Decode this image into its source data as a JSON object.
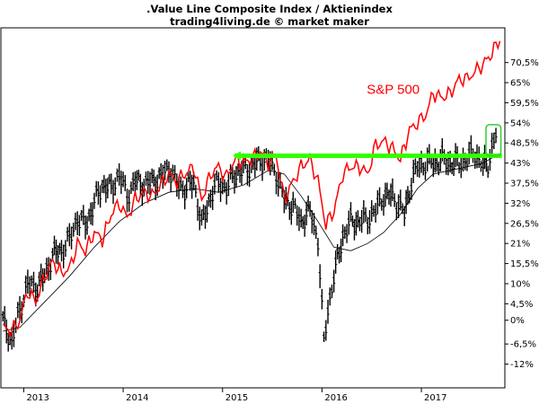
{
  "chart_data": {
    "type": "line",
    "title": ".Value Line Composite Index / Aktienindex",
    "subtitle": "trading4living.de © market maker",
    "annotation": "S&P 500",
    "colors": {
      "price": "#000000",
      "sma": "#000000",
      "sp500": "#ff0000",
      "resistance": "#33ff00",
      "breakout_box": "#33cc33",
      "annotation": "#ff0000"
    },
    "y_axis": {
      "position": "right",
      "tick_labels": [
        "70,5%",
        "65%",
        "59,5%",
        "54%",
        "48,5%",
        "43%",
        "37,5%",
        "32%",
        "26,5%",
        "21%",
        "15,5%",
        "10%",
        "4,5%",
        "0%",
        "-6,5%",
        "-12%"
      ],
      "tick_values": [
        70.5,
        65,
        59.5,
        54,
        48.5,
        43,
        37.5,
        32,
        26.5,
        21,
        15.5,
        10,
        4.5,
        0,
        -6.5,
        -12
      ],
      "ylim": [
        -18.5,
        80
      ]
    },
    "x_axis": {
      "tick_labels": [
        "2013",
        "2014",
        "2015",
        "2016",
        "2017"
      ],
      "tick_values": [
        2013.0,
        2014.0,
        2015.0,
        2016.0,
        2017.0
      ],
      "xlim": [
        2012.77,
        2017.84
      ]
    },
    "grid": false,
    "series": [
      {
        "name": ".Value Line Composite Index",
        "style": "bar",
        "points": [
          [
            2012.79,
            0
          ],
          [
            2012.88,
            -6
          ],
          [
            2012.96,
            3
          ],
          [
            2013.04,
            10
          ],
          [
            2013.12,
            9
          ],
          [
            2013.21,
            12
          ],
          [
            2013.29,
            18
          ],
          [
            2013.38,
            19
          ],
          [
            2013.46,
            22
          ],
          [
            2013.54,
            28
          ],
          [
            2013.62,
            26
          ],
          [
            2013.71,
            32
          ],
          [
            2013.79,
            37
          ],
          [
            2013.88,
            36
          ],
          [
            2013.96,
            40
          ],
          [
            2014.04,
            34
          ],
          [
            2014.12,
            38
          ],
          [
            2014.21,
            37
          ],
          [
            2014.29,
            38
          ],
          [
            2014.38,
            39
          ],
          [
            2014.46,
            42
          ],
          [
            2014.54,
            37
          ],
          [
            2014.62,
            36
          ],
          [
            2014.71,
            38
          ],
          [
            2014.79,
            26
          ],
          [
            2014.88,
            34
          ],
          [
            2014.96,
            38
          ],
          [
            2015.04,
            36
          ],
          [
            2015.12,
            40
          ],
          [
            2015.21,
            41
          ],
          [
            2015.29,
            42
          ],
          [
            2015.38,
            44
          ],
          [
            2015.46,
            44
          ],
          [
            2015.54,
            40
          ],
          [
            2015.62,
            33
          ],
          [
            2015.71,
            31
          ],
          [
            2015.79,
            27
          ],
          [
            2015.88,
            30
          ],
          [
            2015.96,
            22
          ],
          [
            2016.02,
            -6
          ],
          [
            2016.06,
            3
          ],
          [
            2016.12,
            12
          ],
          [
            2016.21,
            23
          ],
          [
            2016.29,
            27
          ],
          [
            2016.38,
            27
          ],
          [
            2016.46,
            28
          ],
          [
            2016.54,
            30
          ],
          [
            2016.62,
            34
          ],
          [
            2016.71,
            34
          ],
          [
            2016.79,
            31
          ],
          [
            2016.83,
            29
          ],
          [
            2016.88,
            36
          ],
          [
            2016.96,
            42
          ],
          [
            2017.04,
            43
          ],
          [
            2017.12,
            43
          ],
          [
            2017.21,
            44
          ],
          [
            2017.29,
            43
          ],
          [
            2017.38,
            43
          ],
          [
            2017.46,
            44
          ],
          [
            2017.54,
            46
          ],
          [
            2017.58,
            44
          ],
          [
            2017.62,
            42
          ],
          [
            2017.67,
            43
          ],
          [
            2017.71,
            47
          ],
          [
            2017.75,
            51
          ]
        ]
      },
      {
        "name": "SMA",
        "style": "thin-line",
        "points": [
          [
            2012.79,
            -3
          ],
          [
            2012.96,
            -2
          ],
          [
            2013.21,
            5
          ],
          [
            2013.46,
            12
          ],
          [
            2013.71,
            20
          ],
          [
            2013.96,
            27
          ],
          [
            2014.21,
            32
          ],
          [
            2014.46,
            35
          ],
          [
            2014.71,
            36
          ],
          [
            2014.96,
            35
          ],
          [
            2015.21,
            37
          ],
          [
            2015.46,
            41
          ],
          [
            2015.62,
            40
          ],
          [
            2015.79,
            34
          ],
          [
            2015.96,
            27
          ],
          [
            2016.12,
            20
          ],
          [
            2016.29,
            19
          ],
          [
            2016.46,
            21
          ],
          [
            2016.62,
            24
          ],
          [
            2016.79,
            29
          ],
          [
            2016.96,
            36
          ],
          [
            2017.12,
            40
          ],
          [
            2017.29,
            41
          ],
          [
            2017.46,
            42
          ],
          [
            2017.62,
            43
          ],
          [
            2017.75,
            45
          ]
        ]
      },
      {
        "name": "S&P 500",
        "style": "line",
        "points": [
          [
            2012.79,
            -2
          ],
          [
            2012.88,
            -3
          ],
          [
            2012.96,
            0
          ],
          [
            2013.04,
            8
          ],
          [
            2013.12,
            5
          ],
          [
            2013.21,
            12
          ],
          [
            2013.29,
            16
          ],
          [
            2013.38,
            13
          ],
          [
            2013.46,
            14
          ],
          [
            2013.54,
            21
          ],
          [
            2013.62,
            19
          ],
          [
            2013.71,
            24
          ],
          [
            2013.79,
            22
          ],
          [
            2013.88,
            29
          ],
          [
            2013.96,
            32
          ],
          [
            2014.04,
            28
          ],
          [
            2014.12,
            33
          ],
          [
            2014.21,
            35
          ],
          [
            2014.29,
            34
          ],
          [
            2014.38,
            37
          ],
          [
            2014.46,
            40
          ],
          [
            2014.54,
            38
          ],
          [
            2014.62,
            40
          ],
          [
            2014.71,
            42
          ],
          [
            2014.79,
            33
          ],
          [
            2014.88,
            40
          ],
          [
            2014.96,
            42
          ],
          [
            2015.04,
            39
          ],
          [
            2015.12,
            44
          ],
          [
            2015.21,
            43
          ],
          [
            2015.29,
            44
          ],
          [
            2015.38,
            46
          ],
          [
            2015.46,
            43
          ],
          [
            2015.54,
            45
          ],
          [
            2015.62,
            33
          ],
          [
            2015.71,
            38
          ],
          [
            2015.79,
            42
          ],
          [
            2015.88,
            44
          ],
          [
            2015.96,
            38
          ],
          [
            2016.04,
            26
          ],
          [
            2016.12,
            30
          ],
          [
            2016.21,
            40
          ],
          [
            2016.29,
            42
          ],
          [
            2016.38,
            42
          ],
          [
            2016.46,
            40
          ],
          [
            2016.54,
            48
          ],
          [
            2016.62,
            49
          ],
          [
            2016.71,
            47
          ],
          [
            2016.79,
            44
          ],
          [
            2016.88,
            52
          ],
          [
            2016.96,
            54
          ],
          [
            2017.04,
            56
          ],
          [
            2017.12,
            62
          ],
          [
            2017.21,
            61
          ],
          [
            2017.29,
            62
          ],
          [
            2017.38,
            66
          ],
          [
            2017.46,
            66
          ],
          [
            2017.54,
            68
          ],
          [
            2017.62,
            70
          ],
          [
            2017.71,
            73
          ],
          [
            2017.79,
            77
          ]
        ]
      }
    ],
    "resistance_line": {
      "y": 45,
      "x_start": 2015.12,
      "x_end": 2017.81
    },
    "breakout_box": {
      "x_start": 2017.65,
      "x_end": 2017.8,
      "y_start": 45,
      "y_end": 53.5
    }
  }
}
